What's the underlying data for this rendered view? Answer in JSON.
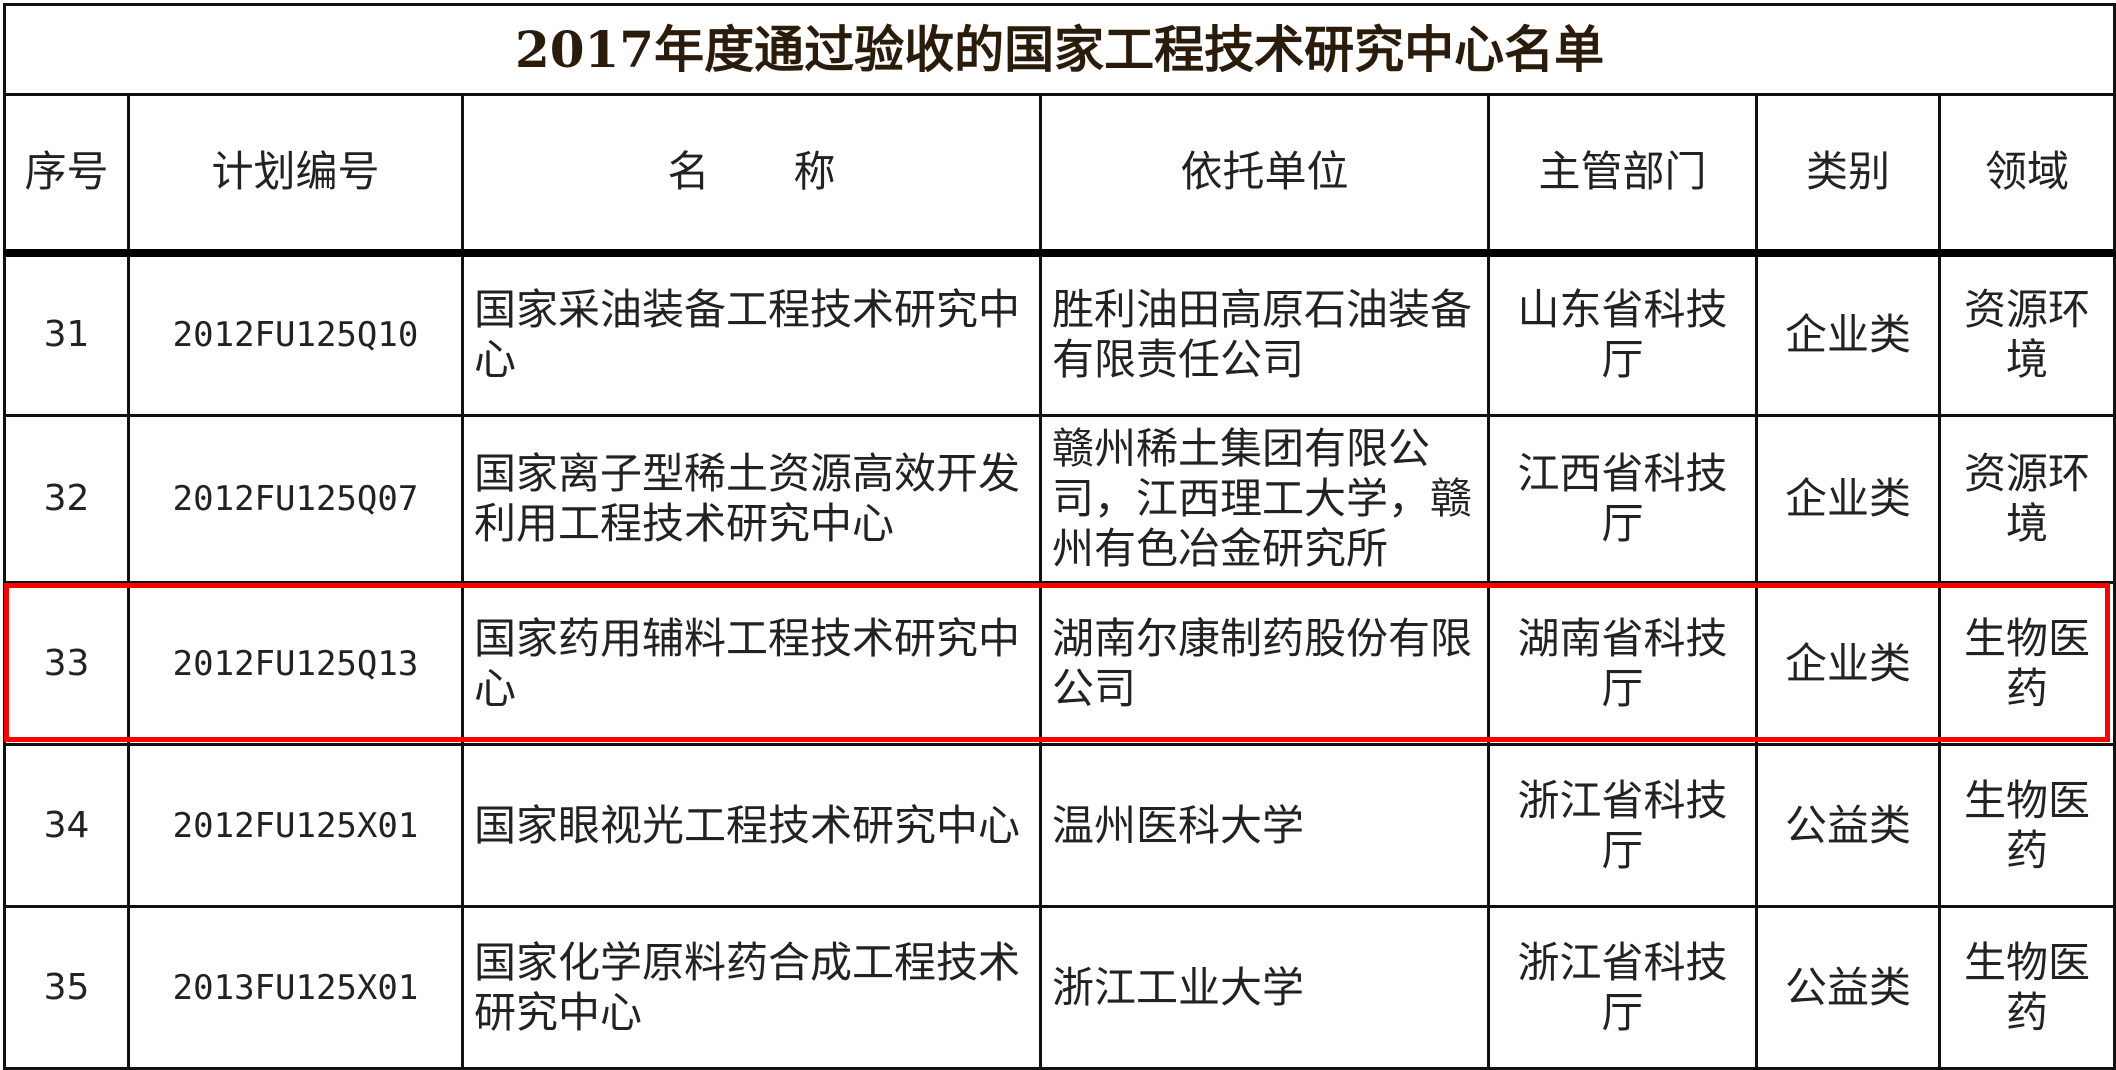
{
  "title": "2017年度通过验收的国家工程技术研究中心名单",
  "headers": [
    "序号",
    "计划编号",
    "名　　称",
    "依托单位",
    "主管部门",
    "类别",
    "领域"
  ],
  "rows": [
    {
      "no": "31",
      "code": "2012FU125Q10",
      "name": "国家采油装备工程技术研究中心",
      "unit": "胜利油田高原石油装备有限责任公司",
      "dept": "山东省科技厅",
      "type": "企业类",
      "field": "资源环境"
    },
    {
      "no": "32",
      "code": "2012FU125Q07",
      "name": "国家离子型稀土资源高效开发利用工程技术研究中心",
      "unit": "赣州稀土集团有限公司，江西理工大学，赣州有色冶金研究所",
      "dept": "江西省科技厅",
      "type": "企业类",
      "field": "资源环境"
    },
    {
      "no": "33",
      "code": "2012FU125Q13",
      "name": "国家药用辅料工程技术研究中心",
      "unit": "湖南尔康制药股份有限公司",
      "dept": "湖南省科技厅",
      "type": "企业类",
      "field": "生物医药"
    },
    {
      "no": "34",
      "code": "2012FU125X01",
      "name": "国家眼视光工程技术研究中心",
      "unit": "温州医科大学",
      "dept": "浙江省科技厅",
      "type": "公益类",
      "field": "生物医药"
    },
    {
      "no": "35",
      "code": "2013FU125X01",
      "name": "国家化学原料药合成工程技术研究中心",
      "unit": "浙江工业大学",
      "dept": "浙江省科技厅",
      "type": "公益类",
      "field": "生物医药"
    }
  ],
  "highlighted_row": "33",
  "colors": {
    "highlight": "#ff0000",
    "border": "#111111"
  }
}
